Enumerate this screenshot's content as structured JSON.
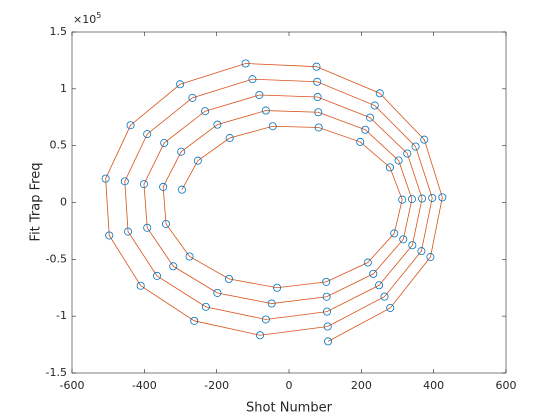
{
  "chart_data": {
    "type": "line",
    "xlabel": "Shot Number",
    "ylabel": "Fit Trap Freq",
    "y_multiplier": {
      "base": "×10",
      "exponent": "5"
    },
    "xlim": [
      -600,
      600
    ],
    "xticks": [
      -600,
      -400,
      -200,
      0,
      200,
      400,
      600
    ],
    "ylim": [
      -150000,
      150000
    ],
    "yticks": [
      {
        "value": -150000,
        "label": "-1.5"
      },
      {
        "value": -100000,
        "label": "-1"
      },
      {
        "value": -50000,
        "label": "-0.5"
      },
      0,
      {
        "value": 50000,
        "label": "0.5"
      },
      {
        "value": 100000,
        "label": "1"
      },
      {
        "value": 150000,
        "label": "1.5"
      }
    ],
    "line_color": "#d95319",
    "marker_color": "#0072bd",
    "series": [
      {
        "x": [
          -296,
          -252,
          -164,
          -45,
          82,
          197,
          279,
          313,
          291,
          218,
          103,
          -33,
          -166,
          -275,
          -340,
          -348,
          -298,
          -198,
          -64,
          81,
          211,
          303,
          340,
          316,
          233,
          104,
          -48,
          -198,
          -320,
          -392,
          -401,
          -345,
          -232,
          -82,
          79,
          224,
          327,
          368,
          341,
          249,
          105,
          -64,
          -230,
          -365,
          -445,
          -454,
          -392,
          -267,
          -101,
          78,
          237,
          350,
          396,
          366,
          264,
          107,
          -80,
          -262,
          -410,
          -497,
          -507,
          -438,
          -301,
          -120,
          76,
          251,
          374,
          424,
          391,
          280,
          108
        ],
        "values": [
          11300,
          36800,
          56700,
          67100,
          66000,
          53300,
          30900,
          2500,
          -27200,
          -52800,
          -69800,
          -75000,
          -67200,
          -47500,
          -18900,
          13700,
          44700,
          68500,
          80900,
          79400,
          64000,
          37000,
          3000,
          -32400,
          -62800,
          -82900,
          -88900,
          -79600,
          -56100,
          -22200,
          16200,
          52400,
          80300,
          94600,
          92800,
          74700,
          43100,
          3500,
          -37600,
          -72800,
          -96000,
          -102900,
          -91800,
          -64600,
          -25600,
          18600,
          60200,
          92100,
          108500,
          106200,
          85300,
          49200,
          4000,
          -42800,
          -82800,
          -109100,
          -116800,
          -104100,
          -73200,
          -29000,
          21000,
          68000,
          104000,
          122300,
          119500,
          96100,
          55300,
          4500,
          -48000,
          -92800,
          -122200
        ]
      }
    ]
  }
}
